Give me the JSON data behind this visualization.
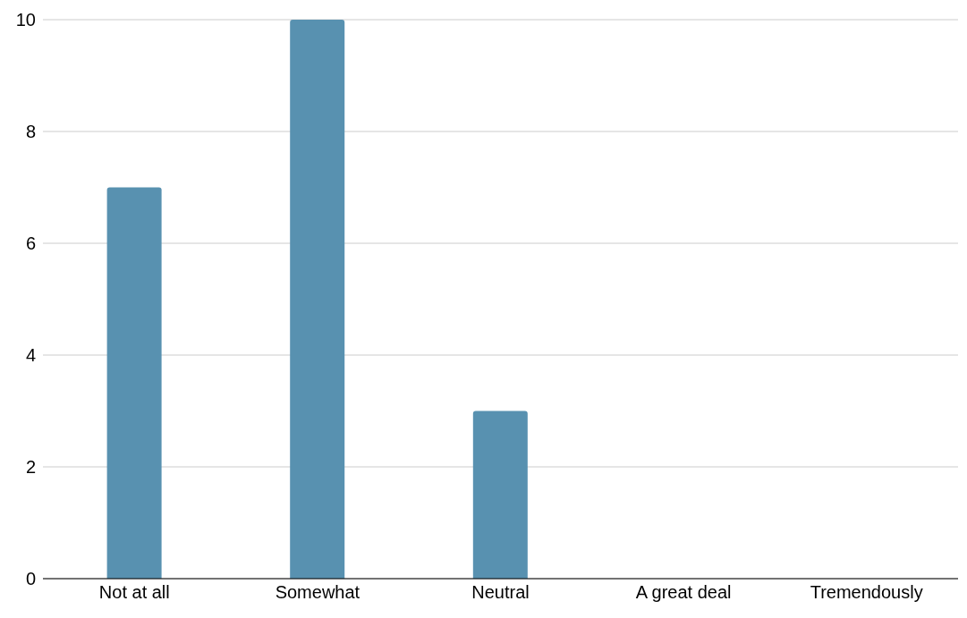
{
  "chart_data": {
    "type": "bar",
    "categories": [
      "Not at all",
      "Somewhat",
      "Neutral",
      "A great deal",
      "Tremendously"
    ],
    "values": [
      7,
      10,
      3,
      0,
      0
    ],
    "color": "#5891b0",
    "ylim": [
      0,
      10
    ],
    "yticks": [
      0,
      2,
      4,
      6,
      8,
      10
    ],
    "grid": "y"
  }
}
